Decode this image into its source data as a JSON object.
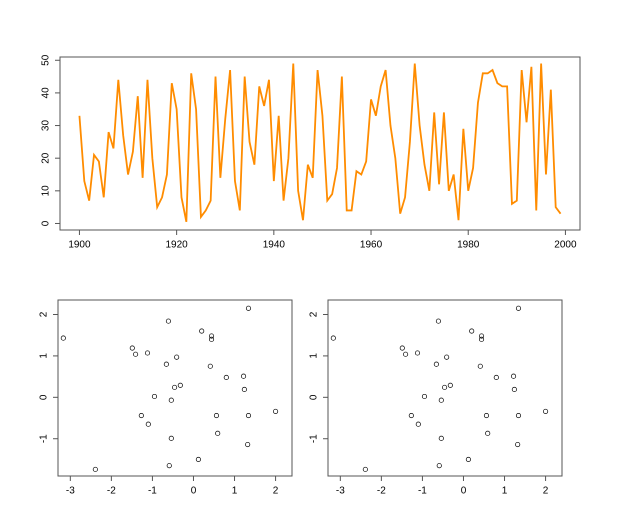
{
  "chart_data": [
    {
      "type": "line",
      "x": [
        1900,
        1901,
        1902,
        1903,
        1904,
        1905,
        1906,
        1907,
        1908,
        1909,
        1910,
        1911,
        1912,
        1913,
        1914,
        1915,
        1916,
        1917,
        1918,
        1919,
        1920,
        1921,
        1922,
        1923,
        1924,
        1925,
        1926,
        1927,
        1928,
        1929,
        1930,
        1931,
        1932,
        1933,
        1934,
        1935,
        1936,
        1937,
        1938,
        1939,
        1940,
        1941,
        1942,
        1943,
        1944,
        1945,
        1946,
        1947,
        1948,
        1949,
        1950,
        1951,
        1952,
        1953,
        1954,
        1955,
        1956,
        1957,
        1958,
        1959,
        1960,
        1961,
        1962,
        1963,
        1964,
        1965,
        1966,
        1967,
        1968,
        1969,
        1970,
        1971,
        1972,
        1973,
        1974,
        1975,
        1976,
        1977,
        1978,
        1979,
        1980,
        1981,
        1982,
        1983,
        1984,
        1985,
        1986,
        1987,
        1988,
        1989,
        1990,
        1991,
        1992,
        1993,
        1994,
        1995,
        1996,
        1997,
        1998,
        1999
      ],
      "values": [
        33,
        13,
        7,
        21,
        19,
        8,
        28,
        23,
        44,
        27,
        15,
        22,
        39,
        14,
        44,
        20,
        5,
        8,
        15,
        43,
        35,
        8,
        0.5,
        46,
        35,
        2,
        4,
        7,
        45,
        14,
        32,
        47,
        13,
        4,
        45,
        25,
        18,
        42,
        36,
        44,
        13,
        33,
        7,
        20,
        49,
        10,
        1,
        18,
        14,
        47,
        33,
        7,
        9,
        17,
        45,
        4,
        4,
        16,
        15,
        19,
        38,
        33,
        42,
        47,
        30,
        20,
        3,
        8,
        25,
        49,
        30,
        18,
        10,
        34,
        12,
        34,
        10,
        15,
        1,
        29,
        10,
        17,
        37,
        46,
        46,
        47,
        43,
        42,
        42,
        6,
        7,
        47,
        31,
        48,
        4,
        49,
        15,
        41,
        5,
        3
      ],
      "color": "#ff8c00",
      "xlim": [
        1896,
        2003
      ],
      "xticks": [
        1900,
        1920,
        1940,
        1960,
        1980,
        2000
      ],
      "ylim": [
        -2,
        51
      ],
      "yticks": [
        0,
        10,
        20,
        30,
        40,
        50
      ]
    },
    {
      "type": "scatter",
      "x": [
        -3.17,
        -2.39,
        -1.49,
        -1.41,
        -1.12,
        -1.27,
        -1.1,
        -0.95,
        -0.61,
        -0.66,
        -0.41,
        -0.46,
        -0.32,
        -0.54,
        -0.54,
        -0.59,
        0.2,
        0.44,
        0.44,
        0.41,
        0.8,
        0.56,
        0.59,
        0.12,
        1.22,
        1.24,
        1.34,
        1.34,
        1.32,
        2.0
      ],
      "values": [
        1.43,
        -1.74,
        1.19,
        1.04,
        1.07,
        -0.44,
        -0.65,
        0.02,
        1.84,
        0.8,
        0.97,
        0.24,
        0.29,
        -0.07,
        -0.99,
        -1.65,
        1.6,
        1.48,
        1.4,
        0.75,
        0.48,
        -0.44,
        -0.87,
        -1.5,
        0.51,
        0.19,
        2.15,
        -0.44,
        -1.14,
        -0.34
      ],
      "color": "#000000",
      "xlim": [
        -3.3,
        2.4
      ],
      "xticks": [
        -3,
        -2,
        -1,
        0,
        1,
        2
      ],
      "ylim": [
        -1.9,
        2.35
      ],
      "yticks": [
        -1,
        0,
        1,
        2
      ]
    },
    {
      "type": "scatter",
      "x": [
        -3.17,
        -2.39,
        -1.49,
        -1.41,
        -1.12,
        -1.27,
        -1.1,
        -0.95,
        -0.61,
        -0.66,
        -0.41,
        -0.46,
        -0.32,
        -0.54,
        -0.54,
        -0.59,
        0.2,
        0.44,
        0.44,
        0.41,
        0.8,
        0.56,
        0.59,
        0.12,
        1.22,
        1.24,
        1.34,
        1.34,
        1.32,
        2.0
      ],
      "values": [
        1.43,
        -1.74,
        1.19,
        1.04,
        1.07,
        -0.44,
        -0.65,
        0.02,
        1.84,
        0.8,
        0.97,
        0.24,
        0.29,
        -0.07,
        -0.99,
        -1.65,
        1.6,
        1.48,
        1.4,
        0.75,
        0.48,
        -0.44,
        -0.87,
        -1.5,
        0.51,
        0.19,
        2.15,
        -0.44,
        -1.14,
        -0.34
      ],
      "color": "#000000",
      "xlim": [
        -3.3,
        2.4
      ],
      "xticks": [
        -3,
        -2,
        -1,
        0,
        1,
        2
      ],
      "ylim": [
        -1.9,
        2.35
      ],
      "yticks": [
        -1,
        0,
        1,
        2
      ]
    }
  ]
}
